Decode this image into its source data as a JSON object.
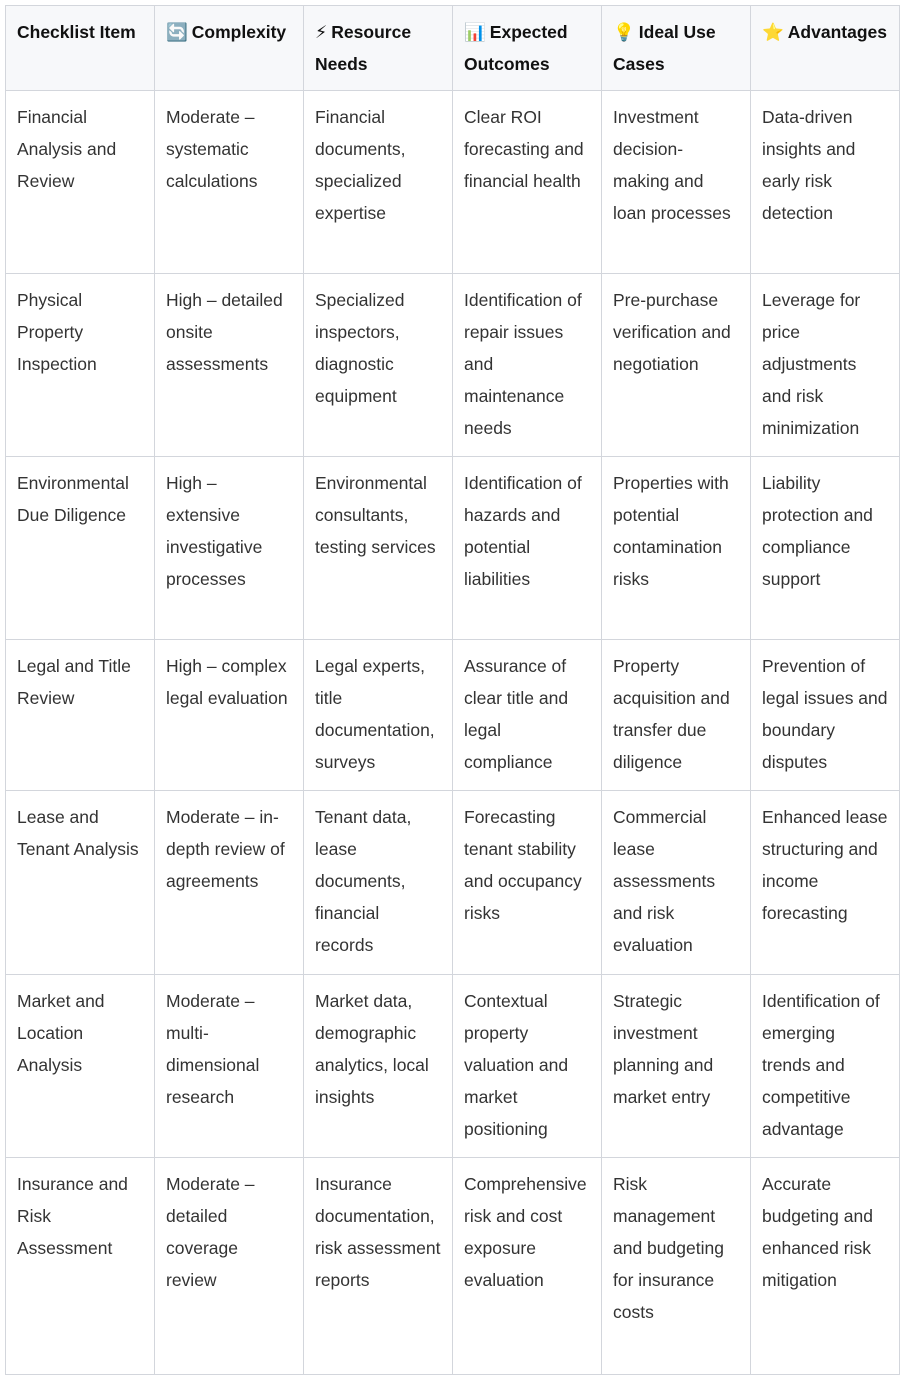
{
  "headers": [
    {
      "icon": "",
      "label": "Checklist Item"
    },
    {
      "icon": "🔄",
      "label": "Complexity"
    },
    {
      "icon": "⚡",
      "label": "Resource Needs"
    },
    {
      "icon": "📊",
      "label": "Expected Outcomes"
    },
    {
      "icon": "💡",
      "label": "Ideal Use Cases"
    },
    {
      "icon": "⭐",
      "label": "Advantages"
    }
  ],
  "rows": [
    [
      "Financial Analysis and Review",
      "Moderate – systematic calculations",
      "Financial documents, specialized expertise",
      "Clear ROI forecasting and financial health",
      "Investment decision-making and loan processes",
      "Data-driven insights and early risk detection"
    ],
    [
      "Physical Property Inspection",
      "High – detailed onsite assessments",
      "Specialized inspectors, diagnostic equipment",
      "Identification of repair issues and maintenance needs",
      "Pre-purchase verification and negotiation",
      "Leverage for price adjustments and risk minimization"
    ],
    [
      "Environmental Due Diligence",
      "High – extensive investigative processes",
      "Environmental consultants, testing services",
      "Identification of hazards and potential liabilities",
      "Properties with potential contamination risks",
      "Liability protection and compliance support"
    ],
    [
      "Legal and Title Review",
      "High – complex legal evaluation",
      "Legal experts, title documentation, surveys",
      "Assurance of clear title and legal compliance",
      "Property acquisition and transfer due diligence",
      "Prevention of legal issues and boundary disputes"
    ],
    [
      "Lease and Tenant Analysis",
      "Moderate – in-depth review of agreements",
      "Tenant data, lease documents, financial records",
      "Forecasting tenant stability and occupancy risks",
      "Commercial lease assessments and risk evaluation",
      "Enhanced lease structuring and income forecasting"
    ],
    [
      "Market and Location Analysis",
      "Moderate – multi-dimensional research",
      "Market data, demographic analytics, local insights",
      "Contextual property valuation and market positioning",
      "Strategic investment planning and market entry",
      "Identification of emerging trends and competitive advantage"
    ],
    [
      "Insurance and Risk Assessment",
      "Moderate – detailed coverage review",
      "Insurance documentation, risk assessment reports",
      "Comprehensive risk and cost exposure evaluation",
      "Risk management and budgeting for insurance costs",
      "Accurate budgeting and enhanced risk mitigation"
    ]
  ]
}
